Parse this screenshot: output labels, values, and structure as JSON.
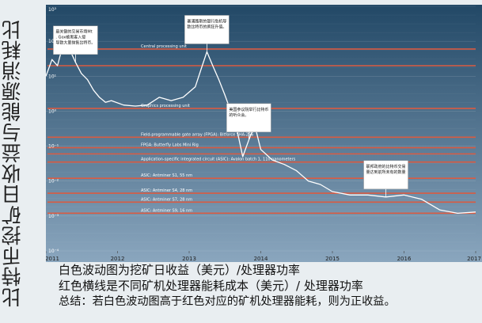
{
  "page": {
    "side_title": "比特币挖矿日收益与能源消耗比",
    "notes": [
      "白色波动图为挖矿日收益（美元）/处理器功率",
      "红色横线是不同矿机处理器能耗成本（美元）/ 处理器功率",
      "总结：若白色波动图高于红色对应的矿机处理器能耗，则为正收益。"
    ]
  },
  "colors": {
    "background": "#e9eef1",
    "plot_top": "#224866",
    "plot_bottom": "#8aa6be",
    "revenue_line": "#ffffff",
    "cost_line": "#d95b42",
    "callout_bg": "#ffffff",
    "text_dark": "#111111"
  },
  "chart_data": {
    "type": "line",
    "title": "",
    "xlabel": "",
    "ylabel": "",
    "y_scale": "log",
    "ylim": [
      0.0001,
      1000
    ],
    "xlim": [
      "2011-01-01",
      "2017-01-01"
    ],
    "x_tick_labels": [
      "2011",
      "2012",
      "2013",
      "2014",
      "2015",
      "2016",
      "2017"
    ],
    "y_tick_labels": [
      "10³",
      "10²",
      "10¹",
      "10⁰",
      "10⁻¹",
      "10⁻²",
      "10⁻³",
      "10⁻⁴"
    ],
    "series": [
      {
        "type": "line",
        "points": [
          [
            "2011-01-01",
            10
          ],
          [
            "2011-02-01",
            30
          ],
          [
            "2011-03-01",
            20
          ],
          [
            "2011-04-01",
            90
          ],
          [
            "2011-05-01",
            60
          ],
          [
            "2011-06-01",
            25
          ],
          [
            "2011-07-01",
            12
          ],
          [
            "2011-08-01",
            8
          ],
          [
            "2011-09-01",
            4
          ],
          [
            "2011-10-01",
            2.5
          ],
          [
            "2011-11-01",
            1.8
          ],
          [
            "2011-12-01",
            2
          ],
          [
            "2012-02-01",
            1.5
          ],
          [
            "2012-04-01",
            1.4
          ],
          [
            "2012-06-01",
            1.5
          ],
          [
            "2012-08-01",
            2.5
          ],
          [
            "2012-10-01",
            2
          ],
          [
            "2012-12-01",
            2.5
          ],
          [
            "2013-02-01",
            5
          ],
          [
            "2013-03-01",
            15
          ],
          [
            "2013-04-01",
            50
          ],
          [
            "2013-05-01",
            20
          ],
          [
            "2013-06-01",
            8
          ],
          [
            "2013-07-01",
            3
          ],
          [
            "2013-08-01",
            1
          ],
          [
            "2013-09-01",
            0.3
          ],
          [
            "2013-10-01",
            0.05
          ],
          [
            "2013-11-01",
            0.15
          ],
          [
            "2013-12-01",
            0.4
          ],
          [
            "2014-01-01",
            0.08
          ],
          [
            "2014-03-01",
            0.04
          ],
          [
            "2014-05-01",
            0.03
          ],
          [
            "2014-07-01",
            0.02
          ],
          [
            "2014-09-01",
            0.01
          ],
          [
            "2014-11-01",
            0.008
          ],
          [
            "2015-01-01",
            0.005
          ],
          [
            "2015-04-01",
            0.004
          ],
          [
            "2015-07-01",
            0.004
          ],
          [
            "2015-10-01",
            0.0035
          ],
          [
            "2016-01-01",
            0.004
          ],
          [
            "2016-04-01",
            0.003
          ],
          [
            "2016-07-01",
            0.0015
          ],
          [
            "2016-10-01",
            0.0012
          ],
          [
            "2017-01-01",
            0.0013
          ]
        ]
      }
    ],
    "cost_lines": [
      {
        "label": "Central processing unit",
        "y": 60,
        "label_pos": "left"
      },
      {
        "label": "",
        "y": 20,
        "label_pos": "none"
      },
      {
        "label": "Graphics processing unit",
        "y": 1.2,
        "label_pos": "left"
      },
      {
        "label": "Field-programmable gate array (FPGA): Bitforce SHA-256",
        "y": 0.18,
        "label_pos": "left"
      },
      {
        "label": "FPGA: Butterfly Labs Mini Rig",
        "y": 0.09,
        "label_pos": "left"
      },
      {
        "label": "",
        "y": 0.06,
        "label_pos": "none"
      },
      {
        "label": "Application-specific integrated circuit (ASIC): Avalon batch 1, 110 nanometers",
        "y": 0.035,
        "label_pos": "left"
      },
      {
        "label": "ASIC: Antminer S1, 55 nm",
        "y": 0.012,
        "label_pos": "left"
      },
      {
        "label": "ASIC: Antminer S4, 28 nm",
        "y": 0.0045,
        "label_pos": "left"
      },
      {
        "label": "ASIC: Antminer S7, 28 nm",
        "y": 0.0025,
        "label_pos": "left"
      },
      {
        "label": "ASIC: Antminer S9, 16 nm",
        "y": 0.0012,
        "label_pos": "left"
      }
    ],
    "annotations": [
      {
        "text": "最关键的交易市场Mt. Gox被黑客入侵导致大量抛售比特币。",
        "x": "2011-06-01",
        "y": 25
      },
      {
        "text": "塞浦路斯的银行危机导致比特币的疯狂升值。",
        "x": "2013-04-01",
        "y": 50
      },
      {
        "text": "美国参议院举行比特币的听众会。",
        "x": "2013-11-01",
        "y": 0.15
      },
      {
        "text": "联邦政府的比特币交易量达到前所未有的数量",
        "x": "2015-10-01",
        "y": 0.0035
      }
    ],
    "legend_position": "none",
    "grid": true
  }
}
